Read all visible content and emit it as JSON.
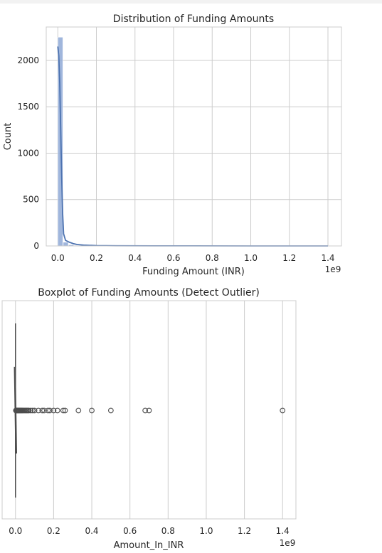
{
  "chart_data": [
    {
      "type": "bar",
      "title": "Distribution of Funding Amounts",
      "xlabel": "Funding Amount (INR)",
      "ylabel": "Count",
      "x_offset_label": "1e9",
      "xlim": [
        -0.06,
        1.47
      ],
      "ylim": [
        0,
        2360
      ],
      "xticks": [
        0.0,
        0.2,
        0.4,
        0.6,
        0.8,
        1.0,
        1.2,
        1.4
      ],
      "xtick_labels": [
        "0.0",
        "0.2",
        "0.4",
        "0.6",
        "0.8",
        "1.0",
        "1.2",
        "1.4"
      ],
      "yticks": [
        0,
        500,
        1000,
        1500,
        2000
      ],
      "ytick_labels": [
        "0",
        "500",
        "1000",
        "1500",
        "2000"
      ],
      "grid": true,
      "bin_width": 0.028,
      "bins": [
        {
          "x": 0.0,
          "count": 2250
        },
        {
          "x": 0.028,
          "count": 40
        },
        {
          "x": 0.056,
          "count": 12
        },
        {
          "x": 0.084,
          "count": 6
        },
        {
          "x": 0.112,
          "count": 3
        },
        {
          "x": 0.14,
          "count": 2
        }
      ],
      "kde": [
        {
          "x": 0.0,
          "y": 2150
        },
        {
          "x": 0.005,
          "y": 2050
        },
        {
          "x": 0.01,
          "y": 1750
        },
        {
          "x": 0.015,
          "y": 1250
        },
        {
          "x": 0.02,
          "y": 750
        },
        {
          "x": 0.025,
          "y": 350
        },
        {
          "x": 0.03,
          "y": 130
        },
        {
          "x": 0.04,
          "y": 60
        },
        {
          "x": 0.06,
          "y": 40
        },
        {
          "x": 0.08,
          "y": 25
        },
        {
          "x": 0.1,
          "y": 15
        },
        {
          "x": 0.14,
          "y": 8
        },
        {
          "x": 0.2,
          "y": 4
        },
        {
          "x": 0.3,
          "y": 2
        },
        {
          "x": 0.5,
          "y": 1
        },
        {
          "x": 0.7,
          "y": 1
        },
        {
          "x": 1.0,
          "y": 0
        },
        {
          "x": 1.4,
          "y": 0
        }
      ],
      "colors": {
        "bar": "#8fa9d6",
        "kde": "#4c72b0"
      }
    },
    {
      "type": "boxplot",
      "title": "Boxplot of Funding Amounts (Detect Outlier)",
      "xlabel": "Amount_In_INR",
      "x_offset_label": "1e9",
      "xlim": [
        -0.07,
        1.47
      ],
      "xticks": [
        0.0,
        0.2,
        0.4,
        0.6,
        0.8,
        1.0,
        1.2,
        1.4
      ],
      "xtick_labels": [
        "0.0",
        "0.2",
        "0.4",
        "0.6",
        "0.8",
        "1.0",
        "1.2",
        "1.4"
      ],
      "grid": true,
      "box": {
        "q1": 0.0,
        "median": 0.0,
        "q3": 0.0,
        "whisker_low": 0.0,
        "whisker_high": 0.0
      },
      "outliers": [
        0.002,
        0.004,
        0.006,
        0.008,
        0.01,
        0.012,
        0.014,
        0.016,
        0.018,
        0.02,
        0.023,
        0.026,
        0.029,
        0.032,
        0.036,
        0.04,
        0.045,
        0.05,
        0.055,
        0.06,
        0.065,
        0.07,
        0.08,
        0.09,
        0.1,
        0.12,
        0.14,
        0.15,
        0.17,
        0.18,
        0.2,
        0.22,
        0.25,
        0.26,
        0.33,
        0.4,
        0.5,
        0.68,
        0.7,
        1.4
      ],
      "colors": {
        "box": "#4d4d4d",
        "outlier": "#4d4d4d"
      }
    }
  ]
}
